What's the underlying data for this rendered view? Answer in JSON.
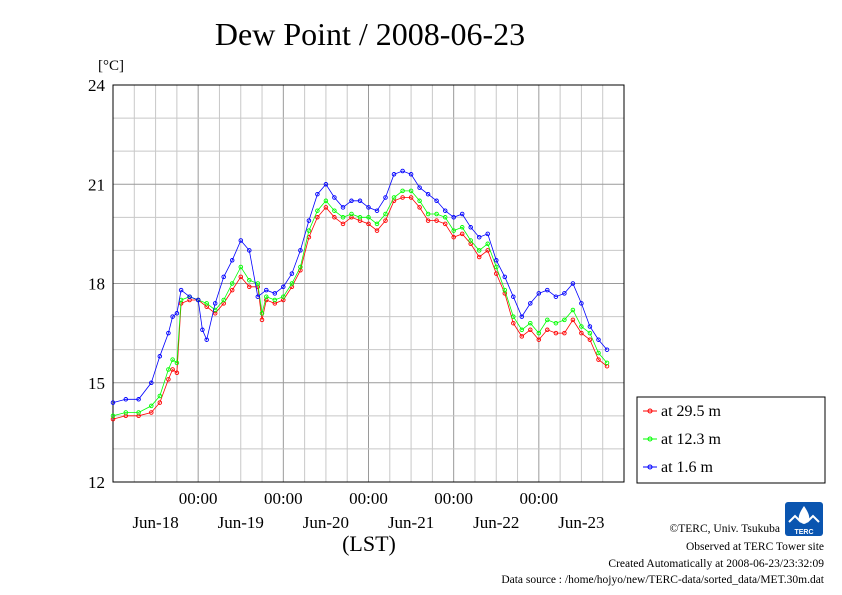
{
  "chart_data": {
    "type": "line",
    "title": "Dew Point / 2008-06-23",
    "ylabel": "[°C]",
    "xlabel": "(LST)",
    "ylim": [
      12,
      24
    ],
    "yticks": [
      "12",
      "15",
      "18",
      "21",
      "24"
    ],
    "xlim_days": [
      -1.0,
      5.0
    ],
    "x_tick_label": "00:00",
    "day_labels": [
      "Jun-18",
      "Jun-19",
      "Jun-20",
      "Jun-21",
      "Jun-22",
      "Jun-23"
    ],
    "grid": true,
    "legend_position": "right",
    "series": [
      {
        "name": "at 29.5 m",
        "color": "#ff0000",
        "points": [
          [
            -1.0,
            13.9
          ],
          [
            -0.85,
            14.0
          ],
          [
            -0.7,
            14.0
          ],
          [
            -0.55,
            14.1
          ],
          [
            -0.45,
            14.4
          ],
          [
            -0.35,
            15.1
          ],
          [
            -0.3,
            15.4
          ],
          [
            -0.25,
            15.3
          ],
          [
            -0.2,
            17.4
          ],
          [
            -0.1,
            17.5
          ],
          [
            0.0,
            17.5
          ],
          [
            0.1,
            17.3
          ],
          [
            0.2,
            17.1
          ],
          [
            0.3,
            17.4
          ],
          [
            0.4,
            17.8
          ],
          [
            0.5,
            18.2
          ],
          [
            0.6,
            17.9
          ],
          [
            0.7,
            17.9
          ],
          [
            0.75,
            16.9
          ],
          [
            0.8,
            17.5
          ],
          [
            0.9,
            17.4
          ],
          [
            1.0,
            17.5
          ],
          [
            1.1,
            17.9
          ],
          [
            1.2,
            18.4
          ],
          [
            1.3,
            19.4
          ],
          [
            1.4,
            20.0
          ],
          [
            1.5,
            20.3
          ],
          [
            1.6,
            20.0
          ],
          [
            1.7,
            19.8
          ],
          [
            1.8,
            20.0
          ],
          [
            1.9,
            19.9
          ],
          [
            2.0,
            19.8
          ],
          [
            2.1,
            19.6
          ],
          [
            2.2,
            19.9
          ],
          [
            2.3,
            20.5
          ],
          [
            2.4,
            20.6
          ],
          [
            2.5,
            20.6
          ],
          [
            2.6,
            20.3
          ],
          [
            2.7,
            19.9
          ],
          [
            2.8,
            19.9
          ],
          [
            2.9,
            19.8
          ],
          [
            3.0,
            19.4
          ],
          [
            3.1,
            19.5
          ],
          [
            3.2,
            19.2
          ],
          [
            3.3,
            18.8
          ],
          [
            3.4,
            19.0
          ],
          [
            3.5,
            18.3
          ],
          [
            3.6,
            17.7
          ],
          [
            3.7,
            16.8
          ],
          [
            3.8,
            16.4
          ],
          [
            3.9,
            16.6
          ],
          [
            4.0,
            16.3
          ],
          [
            4.1,
            16.6
          ],
          [
            4.2,
            16.5
          ],
          [
            4.3,
            16.5
          ],
          [
            4.4,
            16.9
          ],
          [
            4.5,
            16.5
          ],
          [
            4.6,
            16.3
          ],
          [
            4.7,
            15.7
          ],
          [
            4.8,
            15.5
          ]
        ]
      },
      {
        "name": "at 12.3 m",
        "color": "#00ff00",
        "points": [
          [
            -1.0,
            14.0
          ],
          [
            -0.85,
            14.1
          ],
          [
            -0.7,
            14.1
          ],
          [
            -0.55,
            14.3
          ],
          [
            -0.45,
            14.6
          ],
          [
            -0.35,
            15.4
          ],
          [
            -0.3,
            15.7
          ],
          [
            -0.25,
            15.6
          ],
          [
            -0.2,
            17.5
          ],
          [
            -0.1,
            17.6
          ],
          [
            0.0,
            17.5
          ],
          [
            0.1,
            17.4
          ],
          [
            0.2,
            17.2
          ],
          [
            0.3,
            17.5
          ],
          [
            0.4,
            18.0
          ],
          [
            0.5,
            18.5
          ],
          [
            0.6,
            18.1
          ],
          [
            0.7,
            18.0
          ],
          [
            0.75,
            17.1
          ],
          [
            0.8,
            17.6
          ],
          [
            0.9,
            17.5
          ],
          [
            1.0,
            17.6
          ],
          [
            1.1,
            18.0
          ],
          [
            1.2,
            18.5
          ],
          [
            1.3,
            19.6
          ],
          [
            1.4,
            20.2
          ],
          [
            1.5,
            20.5
          ],
          [
            1.6,
            20.2
          ],
          [
            1.7,
            20.0
          ],
          [
            1.8,
            20.1
          ],
          [
            1.9,
            20.0
          ],
          [
            2.0,
            20.0
          ],
          [
            2.1,
            19.8
          ],
          [
            2.2,
            20.1
          ],
          [
            2.3,
            20.6
          ],
          [
            2.4,
            20.8
          ],
          [
            2.5,
            20.8
          ],
          [
            2.6,
            20.5
          ],
          [
            2.7,
            20.1
          ],
          [
            2.8,
            20.1
          ],
          [
            2.9,
            20.0
          ],
          [
            3.0,
            19.6
          ],
          [
            3.1,
            19.7
          ],
          [
            3.2,
            19.3
          ],
          [
            3.3,
            19.0
          ],
          [
            3.4,
            19.2
          ],
          [
            3.5,
            18.5
          ],
          [
            3.6,
            17.8
          ],
          [
            3.7,
            17.0
          ],
          [
            3.8,
            16.6
          ],
          [
            3.9,
            16.8
          ],
          [
            4.0,
            16.5
          ],
          [
            4.1,
            16.9
          ],
          [
            4.2,
            16.8
          ],
          [
            4.3,
            16.9
          ],
          [
            4.4,
            17.2
          ],
          [
            4.5,
            16.7
          ],
          [
            4.6,
            16.5
          ],
          [
            4.7,
            15.9
          ],
          [
            4.8,
            15.6
          ]
        ]
      },
      {
        "name": "at 1.6 m",
        "color": "#0000ff",
        "points": [
          [
            -1.0,
            14.4
          ],
          [
            -0.85,
            14.5
          ],
          [
            -0.7,
            14.5
          ],
          [
            -0.55,
            15.0
          ],
          [
            -0.45,
            15.8
          ],
          [
            -0.35,
            16.5
          ],
          [
            -0.3,
            17.0
          ],
          [
            -0.25,
            17.1
          ],
          [
            -0.2,
            17.8
          ],
          [
            -0.1,
            17.6
          ],
          [
            0.0,
            17.5
          ],
          [
            0.05,
            16.6
          ],
          [
            0.1,
            16.3
          ],
          [
            0.2,
            17.4
          ],
          [
            0.3,
            18.2
          ],
          [
            0.4,
            18.7
          ],
          [
            0.5,
            19.3
          ],
          [
            0.6,
            19.0
          ],
          [
            0.7,
            17.6
          ],
          [
            0.8,
            17.8
          ],
          [
            0.9,
            17.7
          ],
          [
            1.0,
            17.9
          ],
          [
            1.1,
            18.3
          ],
          [
            1.2,
            19.0
          ],
          [
            1.3,
            19.9
          ],
          [
            1.4,
            20.7
          ],
          [
            1.5,
            21.0
          ],
          [
            1.6,
            20.6
          ],
          [
            1.7,
            20.3
          ],
          [
            1.8,
            20.5
          ],
          [
            1.9,
            20.5
          ],
          [
            2.0,
            20.3
          ],
          [
            2.1,
            20.2
          ],
          [
            2.2,
            20.6
          ],
          [
            2.3,
            21.3
          ],
          [
            2.4,
            21.4
          ],
          [
            2.5,
            21.3
          ],
          [
            2.6,
            20.9
          ],
          [
            2.7,
            20.7
          ],
          [
            2.8,
            20.5
          ],
          [
            2.9,
            20.2
          ],
          [
            3.0,
            20.0
          ],
          [
            3.1,
            20.1
          ],
          [
            3.2,
            19.7
          ],
          [
            3.3,
            19.4
          ],
          [
            3.4,
            19.5
          ],
          [
            3.5,
            18.7
          ],
          [
            3.6,
            18.2
          ],
          [
            3.7,
            17.6
          ],
          [
            3.8,
            17.0
          ],
          [
            3.9,
            17.4
          ],
          [
            4.0,
            17.7
          ],
          [
            4.1,
            17.8
          ],
          [
            4.2,
            17.6
          ],
          [
            4.3,
            17.7
          ],
          [
            4.4,
            18.0
          ],
          [
            4.5,
            17.4
          ],
          [
            4.6,
            16.7
          ],
          [
            4.7,
            16.3
          ],
          [
            4.8,
            16.0
          ]
        ]
      }
    ]
  },
  "credits": {
    "line1": "©TERC, Univ. Tsukuba",
    "line2": "Observed at TERC Tower site",
    "line3": "Created Automatically at 2008-06-23/23:32:09",
    "line4": "Data source : /home/hojyo/new/TERC-data/sorted_data/MET.30m.dat",
    "logo_text": "TERC"
  }
}
